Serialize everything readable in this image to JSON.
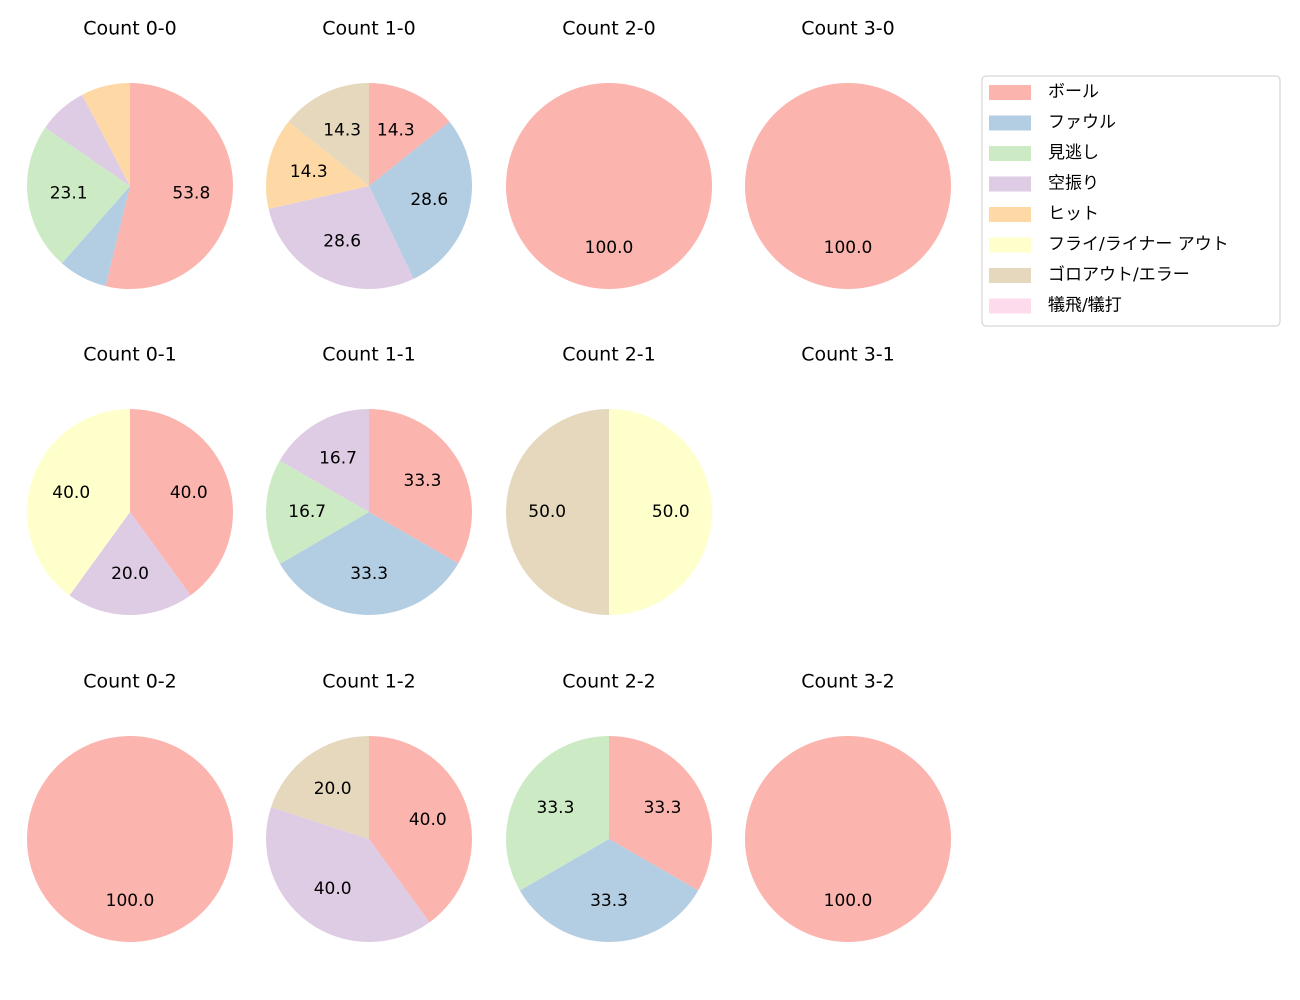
{
  "chart_data": [
    {
      "type": "pie",
      "title": "Count 0-0",
      "categories": [
        "ボール",
        "ファウル",
        "見逃し",
        "空振り",
        "ヒット"
      ],
      "values": [
        53.8,
        7.7,
        23.1,
        7.7,
        7.7
      ],
      "value_labels": [
        "53.8",
        null,
        "23.1",
        null,
        null
      ]
    },
    {
      "type": "pie",
      "title": "Count 1-0",
      "categories": [
        "ボール",
        "ファウル",
        "空振り",
        "ヒット",
        "ゴロアウト/エラー"
      ],
      "values": [
        14.3,
        28.6,
        28.6,
        14.3,
        14.3
      ],
      "value_labels": [
        "14.3",
        "28.6",
        "28.6",
        "14.3",
        "14.3"
      ]
    },
    {
      "type": "pie",
      "title": "Count 2-0",
      "categories": [
        "ボール"
      ],
      "values": [
        100.0
      ],
      "value_labels": [
        "100.0"
      ]
    },
    {
      "type": "pie",
      "title": "Count 3-0",
      "categories": [
        "ボール"
      ],
      "values": [
        100.0
      ],
      "value_labels": [
        "100.0"
      ]
    },
    {
      "type": "pie",
      "title": "Count 0-1",
      "categories": [
        "ボール",
        "空振り",
        "フライ/ライナー アウト"
      ],
      "values": [
        40.0,
        20.0,
        40.0
      ],
      "value_labels": [
        "40.0",
        "20.0",
        "40.0"
      ]
    },
    {
      "type": "pie",
      "title": "Count 1-1",
      "categories": [
        "ボール",
        "ファウル",
        "見逃し",
        "空振り"
      ],
      "values": [
        33.3,
        33.3,
        16.7,
        16.7
      ],
      "value_labels": [
        "33.3",
        "33.3",
        "16.7",
        "16.7"
      ]
    },
    {
      "type": "pie",
      "title": "Count 2-1",
      "categories": [
        "フライ/ライナー アウト",
        "ゴロアウト/エラー"
      ],
      "values": [
        50.0,
        50.0
      ],
      "value_labels": [
        "50.0",
        "50.0"
      ]
    },
    {
      "type": "pie",
      "title": "Count 3-1",
      "categories": [],
      "values": [],
      "value_labels": []
    },
    {
      "type": "pie",
      "title": "Count 0-2",
      "categories": [
        "ボール"
      ],
      "values": [
        100.0
      ],
      "value_labels": [
        "100.0"
      ]
    },
    {
      "type": "pie",
      "title": "Count 1-2",
      "categories": [
        "ボール",
        "空振り",
        "ゴロアウト/エラー"
      ],
      "values": [
        40.0,
        40.0,
        20.0
      ],
      "value_labels": [
        "40.0",
        "40.0",
        "20.0"
      ]
    },
    {
      "type": "pie",
      "title": "Count 2-2",
      "categories": [
        "ボール",
        "ファウル",
        "見逃し"
      ],
      "values": [
        33.3,
        33.3,
        33.3
      ],
      "value_labels": [
        "33.3",
        "33.3",
        "33.3"
      ]
    },
    {
      "type": "pie",
      "title": "Count 3-2",
      "categories": [
        "ボール"
      ],
      "values": [
        100.0
      ],
      "value_labels": [
        "100.0"
      ]
    }
  ],
  "legend": {
    "position": "upper right",
    "labels": [
      "ボール",
      "ファウル",
      "見逃し",
      "空振り",
      "ヒット",
      "フライ/ライナー アウト",
      "ゴロアウト/エラー",
      "犠飛/犠打"
    ],
    "colors": [
      "#fbb4ae",
      "#b3cde3",
      "#ccebc5",
      "#decbe4",
      "#fed9a6",
      "#ffffcc",
      "#e5d8bd",
      "#fddaec"
    ]
  }
}
